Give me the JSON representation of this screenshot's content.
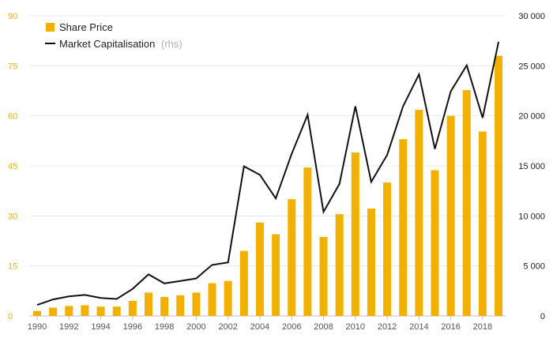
{
  "chart_data": {
    "type": "bar",
    "title": "",
    "x": [
      1990,
      1991,
      1992,
      1993,
      1994,
      1995,
      1996,
      1997,
      1998,
      1999,
      2000,
      2001,
      2002,
      2003,
      2004,
      2005,
      2006,
      2007,
      2008,
      2009,
      2010,
      2011,
      2012,
      2013,
      2014,
      2015,
      2016,
      2017,
      2018,
      2019
    ],
    "x_tick_labels": [
      "1990",
      "1992",
      "1994",
      "1996",
      "1998",
      "2000",
      "2002",
      "2004",
      "2006",
      "2008",
      "2010",
      "2012",
      "2014",
      "2016",
      "2018"
    ],
    "y_left": {
      "ylim": [
        0,
        90
      ],
      "tick_labels": [
        "0",
        "15",
        "30",
        "45",
        "60",
        "75",
        "90"
      ]
    },
    "y_right": {
      "ylim": [
        0,
        30000
      ],
      "tick_labels": [
        "0",
        "5 000",
        "10 000",
        "15 000",
        "20 000",
        "25 000",
        "30 000"
      ]
    },
    "grid": true,
    "legend_position": "top-left",
    "series": [
      {
        "name": "Share Price",
        "type": "bar",
        "axis": "left",
        "color": "#f2b100",
        "values": [
          1.5,
          2.5,
          3,
          3.2,
          2.8,
          2.8,
          4.5,
          7,
          5.7,
          6.2,
          7,
          9.8,
          10.5,
          19.5,
          28,
          24.5,
          35,
          44.5,
          23.7,
          30.5,
          49,
          32.2,
          40,
          53,
          61.8,
          43.7,
          60,
          67.7,
          55.3,
          78
        ]
      },
      {
        "name": "Market Capitalisation",
        "name_suffix": "(rhs)",
        "type": "line",
        "axis": "right",
        "color": "#111111",
        "values": [
          1100,
          1650,
          1950,
          2100,
          1800,
          1700,
          2700,
          4150,
          3250,
          3500,
          3750,
          5100,
          5350,
          14950,
          14100,
          11750,
          16200,
          20100,
          10400,
          13200,
          20950,
          13400,
          16100,
          20950,
          24150,
          16700,
          22450,
          25050,
          19800,
          27400
        ]
      }
    ]
  }
}
